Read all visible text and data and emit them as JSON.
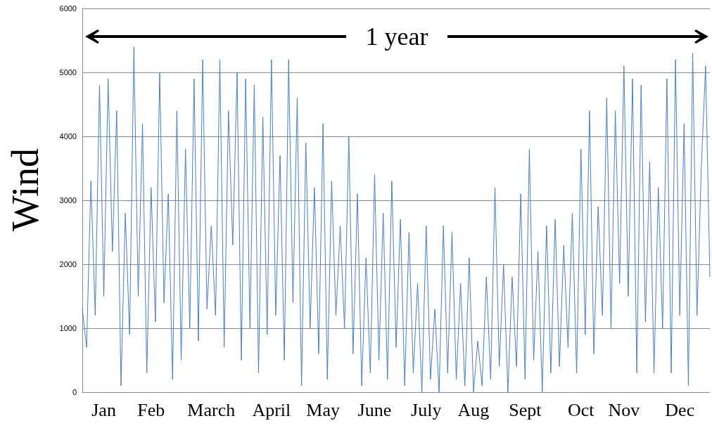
{
  "chart_data": {
    "type": "line",
    "ylabel": "Wind",
    "annotations": [
      "1 year"
    ],
    "categories": [
      null,
      null,
      null,
      null,
      null,
      "Jan",
      null,
      null,
      null,
      null,
      null,
      null,
      null,
      null,
      null,
      null,
      "Feb",
      null,
      null,
      null,
      null,
      null,
      null,
      null,
      null,
      null,
      null,
      null,
      null,
      null,
      "March",
      null,
      null,
      null,
      null,
      null,
      null,
      null,
      null,
      null,
      null,
      null,
      null,
      null,
      "April",
      null,
      null,
      null,
      null,
      null,
      null,
      null,
      null,
      null,
      null,
      null,
      "May",
      null,
      null,
      null,
      null,
      null,
      null,
      null,
      null,
      null,
      null,
      null,
      "June",
      null,
      null,
      null,
      null,
      null,
      null,
      null,
      null,
      null,
      null,
      null,
      "July",
      null,
      null,
      null,
      null,
      null,
      null,
      null,
      null,
      null,
      null,
      "Aug",
      null,
      null,
      null,
      null,
      null,
      null,
      null,
      null,
      null,
      null,
      null,
      "Sept",
      null,
      null,
      null,
      null,
      null,
      null,
      null,
      null,
      null,
      null,
      null,
      null,
      "Oct",
      null,
      null,
      null,
      null,
      null,
      null,
      null,
      null,
      null,
      "Nov",
      null,
      null,
      null,
      null,
      null,
      null,
      null,
      null,
      null,
      null,
      null,
      null,
      "Dec",
      null,
      null,
      null,
      null,
      null,
      null,
      null
    ],
    "series": [
      {
        "color": "#4a7ebb",
        "values": [
          1300,
          700,
          3300,
          1200,
          4800,
          1500,
          4900,
          2200,
          4400,
          100,
          2800,
          900,
          5400,
          1500,
          4200,
          300,
          3200,
          1100,
          5000,
          1400,
          3100,
          200,
          4400,
          500,
          3800,
          1000,
          4900,
          800,
          5200,
          1300,
          2600,
          1200,
          5200,
          700,
          4400,
          2300,
          5000,
          500,
          4900,
          1000,
          4800,
          300,
          4300,
          900,
          5200,
          1200,
          3700,
          500,
          5200,
          1400,
          4600,
          100,
          3900,
          1000,
          3200,
          600,
          4200,
          200,
          3300,
          1200,
          2600,
          1000,
          4000,
          600,
          3100,
          100,
          2100,
          300,
          3400,
          500,
          2800,
          200,
          3300,
          700,
          2700,
          100,
          2500,
          300,
          1700,
          0,
          2600,
          200,
          1300,
          0,
          2600,
          300,
          2500,
          200,
          1700,
          100,
          2100,
          0,
          800,
          100,
          1800,
          200,
          3200,
          400,
          2000,
          0,
          1800,
          400,
          3100,
          200,
          3800,
          500,
          2200,
          0,
          2600,
          300,
          2700,
          400,
          2300,
          700,
          2800,
          300,
          3800,
          900,
          4400,
          600,
          2900,
          1200,
          4600,
          1000,
          4400,
          1700,
          5100,
          1500,
          4900,
          300,
          4800,
          1100,
          3600,
          300,
          3200,
          1000,
          4900,
          300,
          5200,
          1200,
          4200,
          100,
          5300,
          1200,
          3500,
          5100,
          1800
        ]
      }
    ],
    "ylim": [
      0,
      6000
    ],
    "yticks": [
      0,
      1000,
      2000,
      3000,
      4000,
      5000,
      6000
    ],
    "grid": "y",
    "marker": "none",
    "line_style": "solid"
  }
}
